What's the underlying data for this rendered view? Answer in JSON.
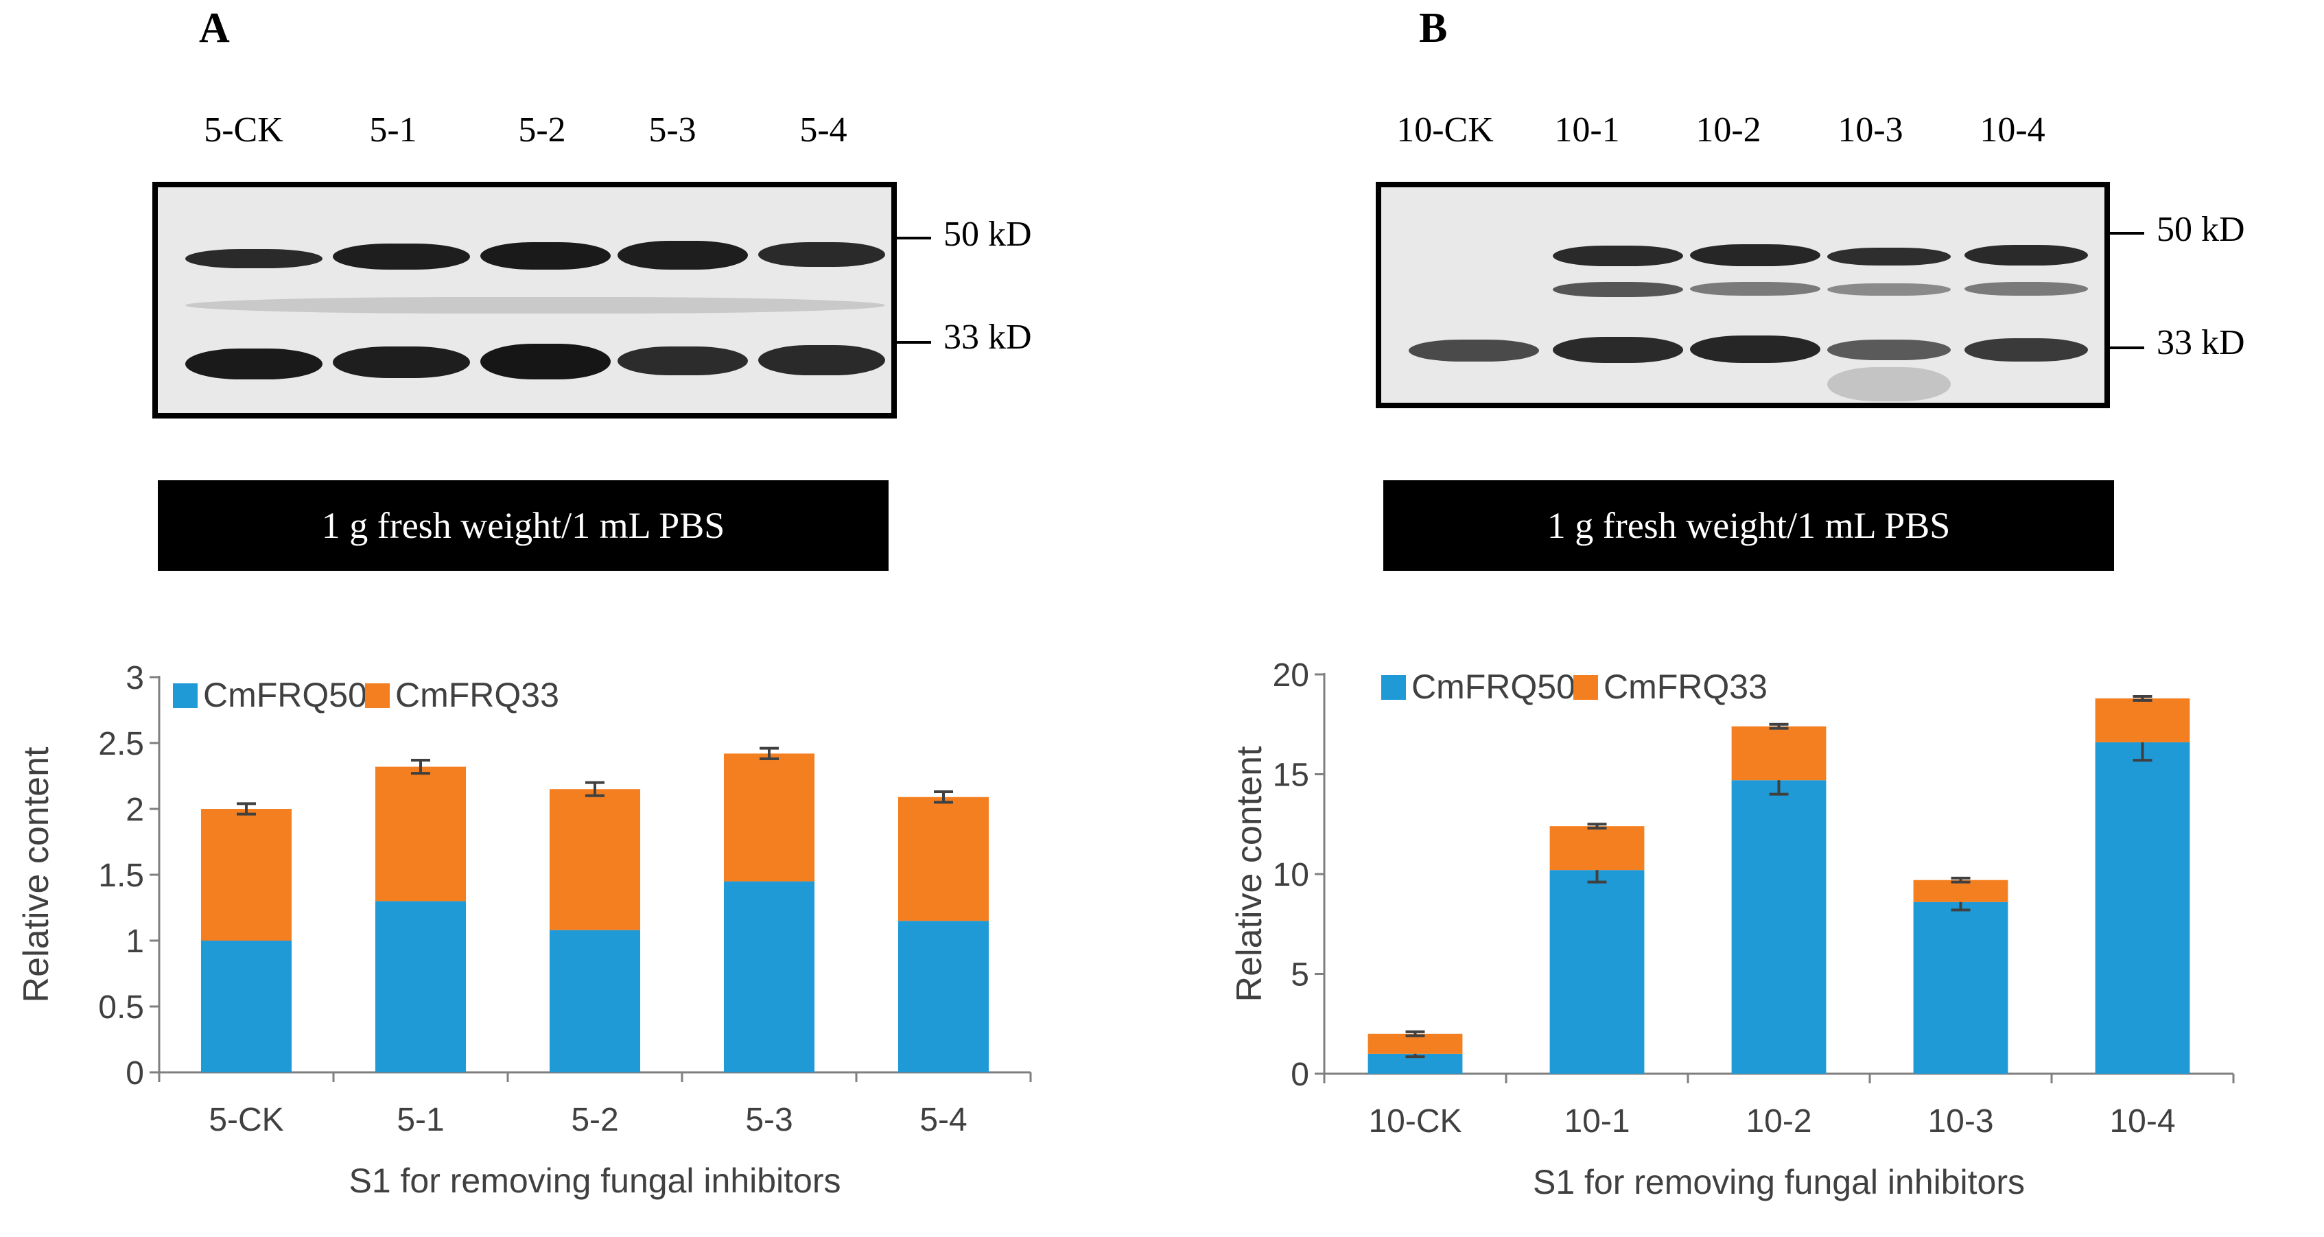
{
  "chart_data": [
    {
      "panel": "A",
      "type": "bar",
      "stacked": true,
      "categories": [
        "5-CK",
        "5-1",
        "5-2",
        "5-3",
        "5-4"
      ],
      "series": [
        {
          "name": "CmFRQ50",
          "values": [
            1.0,
            1.3,
            1.08,
            1.45,
            1.15
          ],
          "color": "#1f9ad6"
        },
        {
          "name": "CmFRQ33",
          "values": [
            1.0,
            1.02,
            1.07,
            0.97,
            0.94
          ],
          "color": "#f47f20"
        }
      ],
      "error_bars": {
        "CmFRQ50": [
          0,
          0,
          0,
          0,
          0
        ],
        "CmFRQ33": [
          0.04,
          0.05,
          0.05,
          0.04,
          0.04
        ]
      },
      "ylim": [
        0,
        3
      ],
      "yticks": [
        0,
        0.5,
        1,
        1.5,
        2,
        2.5,
        3
      ],
      "ylabel": "Relative content",
      "xlabel": "S1 for removing fungal inhibitors",
      "legend": "top-left",
      "grid": false
    },
    {
      "panel": "B",
      "type": "bar",
      "stacked": true,
      "categories": [
        "10-CK",
        "10-1",
        "10-2",
        "10-3",
        "10-4"
      ],
      "series": [
        {
          "name": "CmFRQ50",
          "values": [
            1.0,
            10.2,
            14.7,
            8.6,
            16.6
          ],
          "color": "#1f9ad6"
        },
        {
          "name": "CmFRQ33",
          "values": [
            1.0,
            2.2,
            2.7,
            1.1,
            2.2
          ],
          "color": "#f47f20"
        }
      ],
      "error_bars": {
        "CmFRQ50": [
          0.15,
          0.6,
          0.7,
          0.4,
          0.9
        ],
        "CmFRQ33": [
          0.1,
          0.1,
          0.1,
          0.1,
          0.1
        ]
      },
      "ylim": [
        0,
        20
      ],
      "yticks": [
        0,
        5,
        10,
        15,
        20
      ],
      "ylabel": "Relative content",
      "xlabel": "S1 for removing fungal inhibitors",
      "legend": "top-left",
      "grid": false
    }
  ],
  "panelA": {
    "letter": "A",
    "lanes": [
      "5-CK",
      "5-1",
      "5-2",
      "5-3",
      "5-4"
    ],
    "markers": [
      "50 kD",
      "33 kD"
    ],
    "condition": "1 g  fresh weight/1 mL PBS"
  },
  "panelB": {
    "letter": "B",
    "lanes": [
      "10-CK",
      "10-1",
      "10-2",
      "10-3",
      "10-4"
    ],
    "markers": [
      "50 kD",
      "33 kD"
    ],
    "condition": "1 g  fresh weight/1 mL PBS"
  }
}
